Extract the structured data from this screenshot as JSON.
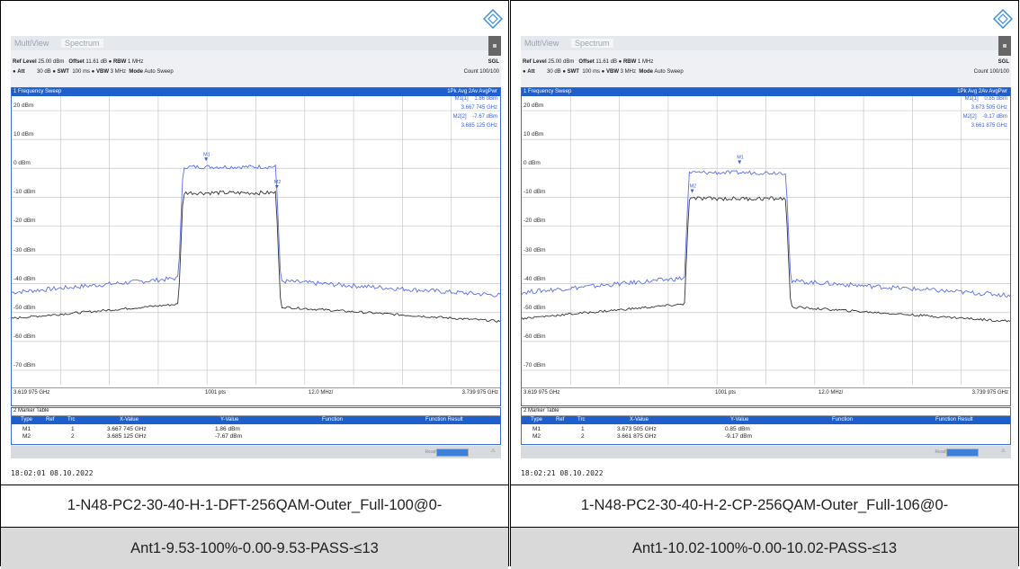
{
  "panels": [
    {
      "tabs": {
        "multiview": "MultiView",
        "spectrum": "Spectrum"
      },
      "header": {
        "ref_level_label": "Ref Level",
        "ref_level": "25.00 dBm",
        "offset_label": "Offset",
        "offset": "11.61 dB",
        "rbw_label": "RBW",
        "rbw": "1 MHz",
        "att_label": "Att",
        "att": "30 dB",
        "swt_label": "SWT",
        "swt": "100 ms",
        "vbw_label": "VBW",
        "vbw": "3 MHz",
        "mode_label": "Mode",
        "mode": "Auto Sweep",
        "sgl": "SGL",
        "count": "Count 100/100"
      },
      "trace_title": "1 Frequency Sweep",
      "trace_modes": "1Pk Avg   2Av AvgPwr",
      "marker_readout": {
        "m1_label": "M1[1]",
        "m1_val": "1.86 dBm",
        "m1_freq": "3.667 745 GHz",
        "m2_label": "M2[2]",
        "m2_val": "-7.67 dBm",
        "m2_freq": "3.685 125 GHz"
      },
      "y_ticks": [
        "20 dBm",
        "10 dBm",
        "0 dBm",
        "-10 dBm",
        "-20 dBm",
        "-30 dBm",
        "-40 dBm",
        "-50 dBm",
        "-60 dBm",
        "-70 dBm"
      ],
      "x_start": "3.619 975 GHz",
      "points": "1001 pts",
      "span_per_div": "12.0 MHz/",
      "x_stop": "3.739 975 GHz",
      "marker_table": {
        "title": "2 Marker Table",
        "headers": [
          "Type",
          "Ref",
          "Trc",
          "X-Value",
          "Y-Value",
          "Function",
          "Function Result"
        ],
        "rows": [
          {
            "type": "M1",
            "ref": "",
            "trc": "1",
            "x": "3.667 745 GHz",
            "y": "1.86 dBm"
          },
          {
            "type": "M2",
            "ref": "",
            "trc": "2",
            "x": "3.685 125 GHz",
            "y": "-7.67 dBm"
          }
        ]
      },
      "status": {
        "ready": "Ready"
      },
      "timestamp": "18:02:01  08.10.2022",
      "caption_line1": "1-N48-PC2-30-40-H-1-DFT-256QAM-Outer_Full-100@0-",
      "caption_line2": "Ant1-9.53-100%-0.00-9.53-PASS-≤13",
      "colors": {
        "trace1": "#5a6fe8",
        "trace2": "#333333"
      },
      "chart_data": {
        "type": "line",
        "x_range_ghz": [
          3.619975,
          3.739975
        ],
        "ylim": [
          -75,
          25
        ],
        "series": [
          {
            "name": "1",
            "plateau_dbm": 0.5,
            "outer_dbm": -40,
            "band_ghz": [
              3.6615,
              3.6855
            ]
          },
          {
            "name": "2",
            "plateau_dbm": -8.5,
            "outer_dbm": -49,
            "band_ghz": [
              3.6615,
              3.6855
            ]
          }
        ],
        "markers": [
          {
            "name": "M1",
            "x_ghz": 3.667745,
            "y_dbm": 1.86,
            "trace": 1
          },
          {
            "name": "M2",
            "x_ghz": 3.685125,
            "y_dbm": -7.67,
            "trace": 2
          }
        ]
      }
    },
    {
      "tabs": {
        "multiview": "MultiView",
        "spectrum": "Spectrum"
      },
      "header": {
        "ref_level_label": "Ref Level",
        "ref_level": "25.00 dBm",
        "offset_label": "Offset",
        "offset": "11.61 dB",
        "rbw_label": "RBW",
        "rbw": "1 MHz",
        "att_label": "Att",
        "att": "30 dB",
        "swt_label": "SWT",
        "swt": "100 ms",
        "vbw_label": "VBW",
        "vbw": "3 MHz",
        "mode_label": "Mode",
        "mode": "Auto Sweep",
        "sgl": "SGL",
        "count": "Count 100/100"
      },
      "trace_title": "1 Frequency Sweep",
      "trace_modes": "1Pk Avg   2Av AvgPwr",
      "marker_readout": {
        "m1_label": "M1[1]",
        "m1_val": "0.85 dBm",
        "m1_freq": "3.673 505 GHz",
        "m2_label": "M2[2]",
        "m2_val": "-9.17 dBm",
        "m2_freq": "3.661 875 GHz"
      },
      "y_ticks": [
        "20 dBm",
        "10 dBm",
        "0 dBm",
        "-10 dBm",
        "-20 dBm",
        "-30 dBm",
        "-40 dBm",
        "-50 dBm",
        "-60 dBm",
        "-70 dBm"
      ],
      "x_start": "3.619 975 GHz",
      "points": "1001 pts",
      "span_per_div": "12.0 MHz/",
      "x_stop": "3.739 975 GHz",
      "marker_table": {
        "title": "2 Marker Table",
        "headers": [
          "Type",
          "Ref",
          "Trc",
          "X-Value",
          "Y-Value",
          "Function",
          "Function Result"
        ],
        "rows": [
          {
            "type": "M1",
            "ref": "",
            "trc": "1",
            "x": "3.673 505 GHz",
            "y": "0.85 dBm"
          },
          {
            "type": "M2",
            "ref": "",
            "trc": "2",
            "x": "3.661 875 GHz",
            "y": "-9.17 dBm"
          }
        ]
      },
      "status": {
        "ready": "Ready"
      },
      "timestamp": "18:02:21  08.10.2022",
      "caption_line1": "1-N48-PC2-30-40-H-2-CP-256QAM-Outer_Full-106@0-",
      "caption_line2": "Ant1-10.02-100%-0.00-10.02-PASS-≤13",
      "colors": {
        "trace1": "#5a6fe8",
        "trace2": "#333333"
      },
      "chart_data": {
        "type": "line",
        "x_range_ghz": [
          3.619975,
          3.739975
        ],
        "ylim": [
          -75,
          25
        ],
        "series": [
          {
            "name": "1",
            "plateau_dbm": -1.5,
            "outer_dbm": -40,
            "band_ghz": [
              3.6605,
              3.6855
            ]
          },
          {
            "name": "2",
            "plateau_dbm": -10.5,
            "outer_dbm": -49,
            "band_ghz": [
              3.6605,
              3.6855
            ]
          }
        ],
        "markers": [
          {
            "name": "M1",
            "x_ghz": 3.673505,
            "y_dbm": 0.85,
            "trace": 1
          },
          {
            "name": "M2",
            "x_ghz": 3.661875,
            "y_dbm": -9.17,
            "trace": 2
          }
        ]
      }
    }
  ]
}
